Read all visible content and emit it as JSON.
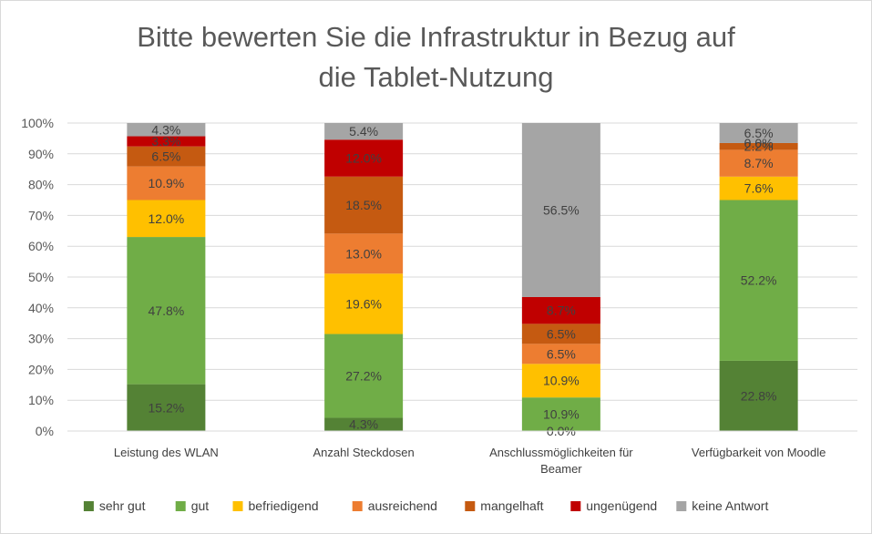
{
  "chart_data": {
    "type": "bar",
    "stacked": true,
    "percent_stacked": true,
    "title_lines": [
      "Bitte bewerten Sie die Infrastruktur in Bezug auf",
      "die Tablet-Nutzung"
    ],
    "xlabel": "",
    "ylabel": "",
    "ylim": [
      0,
      100
    ],
    "y_ticks": [
      "0%",
      "10%",
      "20%",
      "30%",
      "40%",
      "50%",
      "60%",
      "70%",
      "80%",
      "90%",
      "100%"
    ],
    "grid": true,
    "legend_position": "bottom",
    "categories": [
      [
        "Leistung des WLAN"
      ],
      [
        "Anzahl Steckdosen"
      ],
      [
        "Anschlussmöglichkeiten für",
        "Beamer"
      ],
      [
        "Verfügbarkeit von Moodle"
      ]
    ],
    "series": [
      {
        "name": "sehr gut",
        "color": "#548235",
        "values": [
          15.2,
          4.3,
          0.0,
          22.8
        ],
        "labels": [
          "15.2%",
          "4.3%",
          "0.0%",
          "22.8%"
        ]
      },
      {
        "name": "gut",
        "color": "#70ad47",
        "values": [
          47.8,
          27.2,
          10.9,
          52.2
        ],
        "labels": [
          "47.8%",
          "27.2%",
          "10.9%",
          "52.2%"
        ]
      },
      {
        "name": "befriedigend",
        "color": "#ffc000",
        "values": [
          12.0,
          19.6,
          10.9,
          7.6
        ],
        "labels": [
          "12.0%",
          "19.6%",
          "10.9%",
          "7.6%"
        ]
      },
      {
        "name": "ausreichend",
        "color": "#ed7d31",
        "values": [
          10.9,
          13.0,
          6.5,
          8.7
        ],
        "labels": [
          "10.9%",
          "13.0%",
          "6.5%",
          "8.7%"
        ]
      },
      {
        "name": "mangelhaft",
        "color": "#c55a11",
        "values": [
          6.5,
          18.5,
          6.5,
          2.2
        ],
        "labels": [
          "6.5%",
          "18.5%",
          "6.5%",
          "2.2%"
        ]
      },
      {
        "name": "ungenügend",
        "color": "#c00000",
        "values": [
          3.3,
          12.0,
          8.7,
          0.0
        ],
        "labels": [
          "3.3%",
          "12.0%",
          "8.7%",
          "0.0%"
        ]
      },
      {
        "name": "keine Antwort",
        "color": "#a5a5a5",
        "values": [
          4.3,
          5.4,
          56.5,
          6.5
        ],
        "labels": [
          "4.3%",
          "5.4%",
          "56.5%",
          "6.5%"
        ]
      }
    ]
  }
}
